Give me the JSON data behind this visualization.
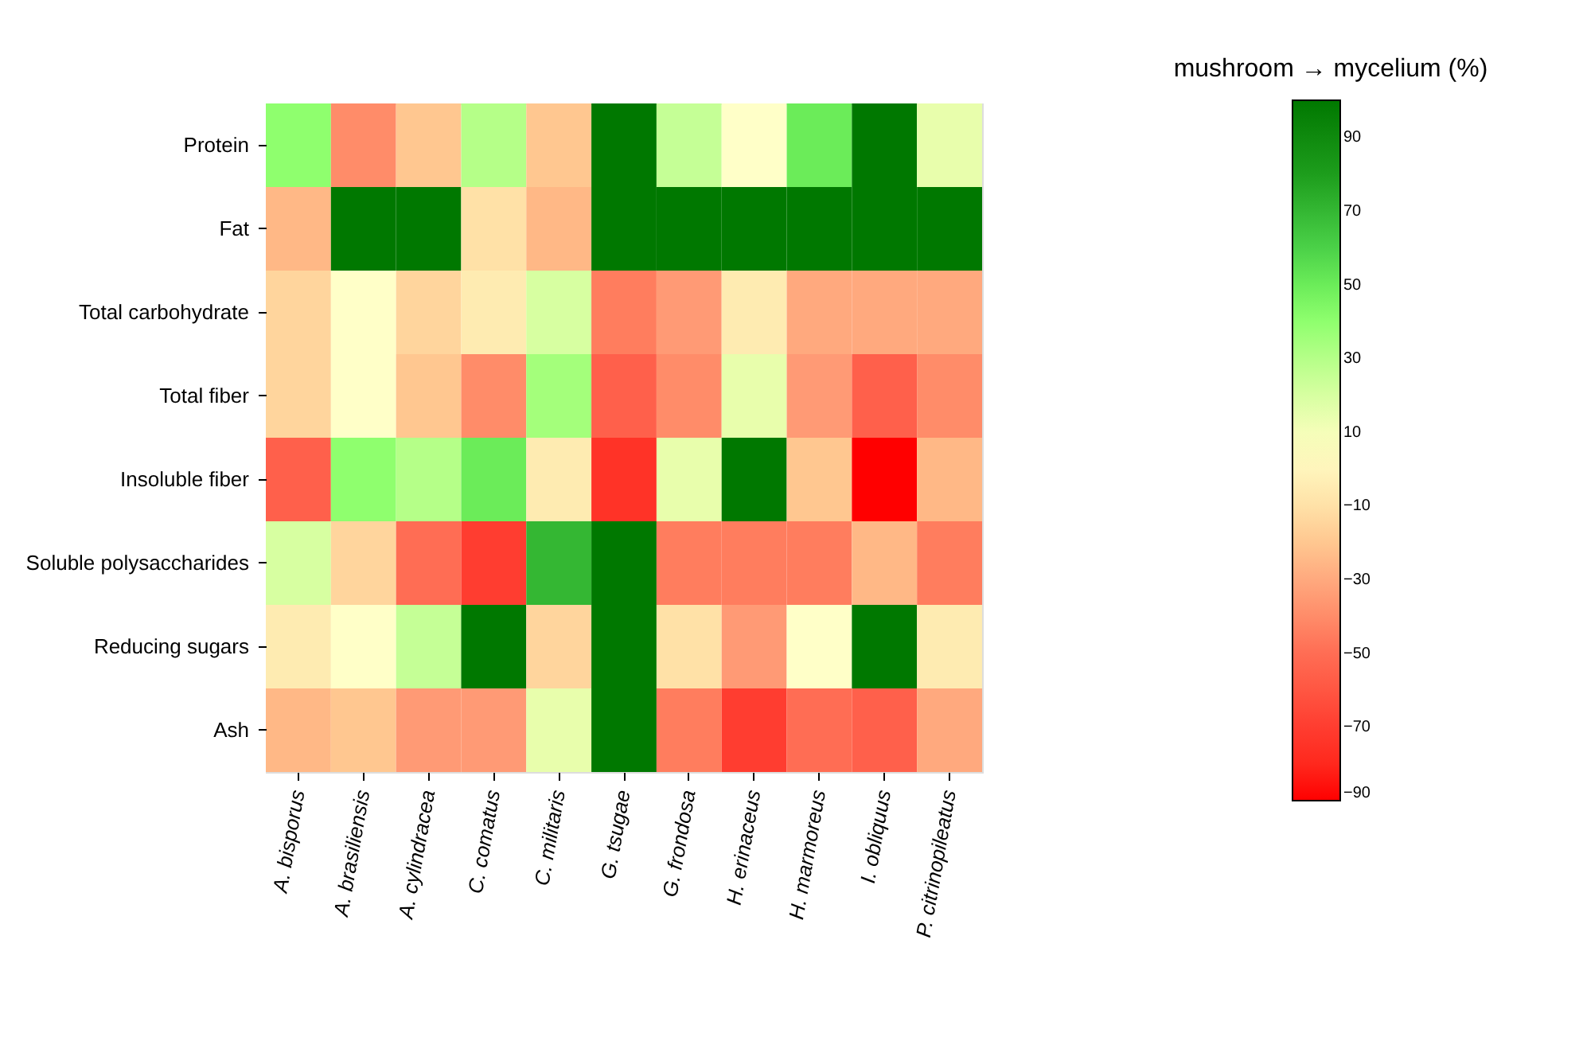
{
  "chart_data": {
    "type": "heatmap",
    "clabel": "mushroom → mycelium (%)",
    "categories": [
      "A. bisporus",
      "A. brasiliensis",
      "A. cylindracea",
      "C. comatus",
      "C. militaris",
      "G. tsugae",
      "G. frondosa",
      "H. erinaceus",
      "H. marmoreus",
      "I. obliquus",
      "P. citrinopileatus"
    ],
    "y_categories": [
      "Protein",
      "Fat",
      "Total carbohydrate",
      "Total fiber",
      "Insoluble fiber",
      "Soluble polysaccharides",
      "Reducing sugars",
      "Ash"
    ],
    "cells": [
      [
        40,
        -40,
        -20,
        30,
        -20,
        100,
        25,
        5,
        50,
        100,
        15
      ],
      [
        -25,
        100,
        100,
        -10,
        -25,
        100,
        100,
        100,
        100,
        100,
        100
      ],
      [
        -15,
        5,
        -15,
        -5,
        20,
        -45,
        -35,
        -5,
        -30,
        -30,
        -30
      ],
      [
        -15,
        5,
        -20,
        -40,
        35,
        -55,
        -40,
        15,
        -35,
        -55,
        -40
      ],
      [
        -55,
        40,
        30,
        50,
        -5,
        -75,
        15,
        100,
        -20,
        -90,
        -25
      ],
      [
        20,
        -15,
        -50,
        -70,
        70,
        100,
        -45,
        -45,
        -45,
        -25,
        -45
      ],
      [
        -5,
        5,
        25,
        100,
        -15,
        100,
        -10,
        -35,
        5,
        100,
        -5
      ],
      [
        -25,
        -20,
        -35,
        -35,
        15,
        100,
        -45,
        -70,
        -50,
        -55,
        -30
      ]
    ],
    "clim": [
      -90,
      100
    ],
    "cticks": [
      -90,
      -70,
      -50,
      -30,
      -10,
      10,
      30,
      50,
      70,
      90
    ]
  }
}
